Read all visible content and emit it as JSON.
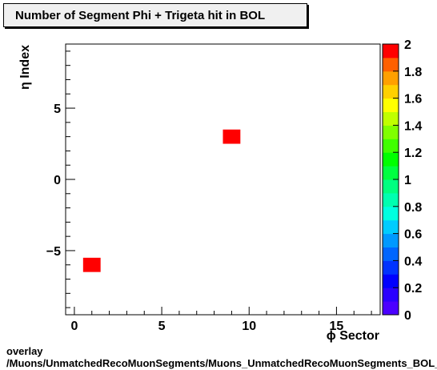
{
  "title": "Number of Segment Phi + Trigeta hit in BOL",
  "footer": {
    "line1": "overlay",
    "line2": "/Muons/UnmatchedRecoMuonSegments/Muons_UnmatchedRecoMuonSegments_BOL_"
  },
  "chart_data": {
    "type": "heatmap",
    "title": "Number of Segment Phi + Trigeta hit in BOL",
    "xlabel": "ϕ Sector",
    "ylabel": "η Index",
    "xlim": [
      -0.5,
      17.5
    ],
    "ylim": [
      -9.5,
      9.5
    ],
    "x_ticks": [
      0,
      5,
      10,
      15
    ],
    "y_ticks": [
      -5,
      0,
      5
    ],
    "zlim": [
      0,
      2
    ],
    "colorbar_ticks": [
      "0",
      "0.2",
      "0.4",
      "0.6",
      "0.8",
      "1",
      "1.2",
      "1.4",
      "1.6",
      "1.8",
      "2"
    ],
    "cells": [
      {
        "x": 1,
        "y": -6,
        "value": 2
      },
      {
        "x": 9,
        "y": 3,
        "value": 2
      }
    ],
    "palette": [
      "#6a00ff",
      "#4b00ff",
      "#2a00ff",
      "#0000ff",
      "#0033ff",
      "#0066ff",
      "#0099ff",
      "#00ccff",
      "#00ffe0",
      "#00ffb0",
      "#00ff80",
      "#00ff40",
      "#00ff00",
      "#40ff00",
      "#80ff00",
      "#c0ff00",
      "#ffff00",
      "#ffd000",
      "#ffa000",
      "#ff6000",
      "#ff0000"
    ]
  }
}
